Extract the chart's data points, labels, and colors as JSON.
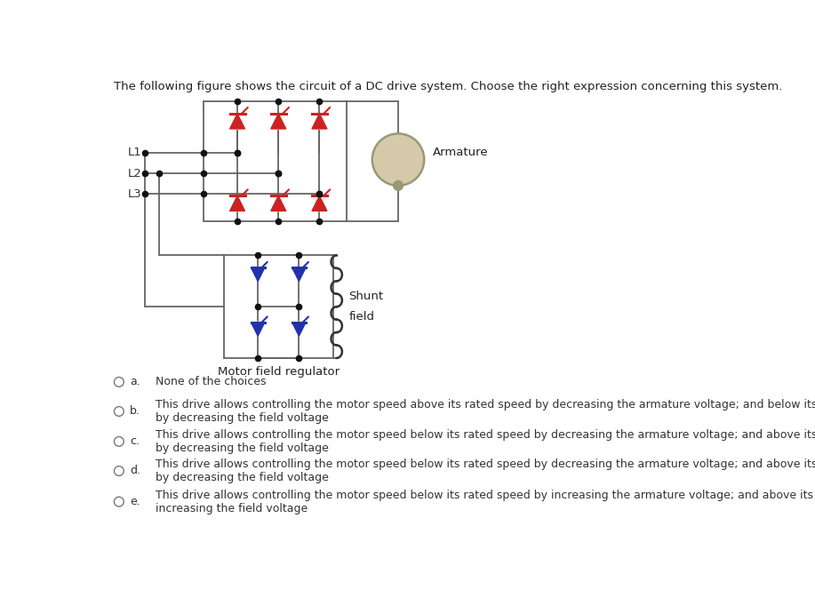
{
  "title": "The following figure shows the circuit of a DC drive system. Choose the right expression concerning this system.",
  "title_fontsize": 9.5,
  "bg_color": "#ffffff",
  "options": [
    {
      "label": "a.",
      "text": "None of the choices"
    },
    {
      "label": "b.",
      "text": "This drive allows controlling the motor speed above its rated speed by decreasing the armature voltage; and below its rated speed\nby decreasing the field voltage"
    },
    {
      "label": "c.",
      "text": "This drive allows controlling the motor speed below its rated speed by decreasing the armature voltage; and above its rated speed\nby decreasing the field voltage"
    },
    {
      "label": "d.",
      "text": "This drive allows controlling the motor speed below its rated speed by decreasing the armature voltage; and above its rated speed\nby decreasing the field voltage"
    },
    {
      "label": "e.",
      "text": "This drive allows controlling the motor speed below its rated speed by increasing the armature voltage; and above its rated speed by\nincreasing the field voltage"
    }
  ],
  "line_color": "#666666",
  "thyristor_red": "#cc2222",
  "thyristor_blue": "#2233aa",
  "dot_color": "#111111",
  "armature_fill": "#d4c9a8",
  "armature_edge": "#999977",
  "shunt_color": "#333333",
  "label_fontsize": 9.5,
  "option_text_fontsize": 9.0
}
